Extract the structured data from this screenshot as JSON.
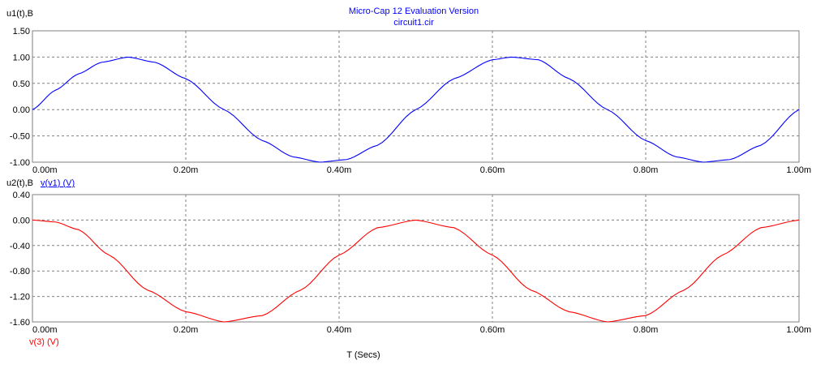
{
  "header": {
    "title": "Micro-Cap 12 Evaluation Version",
    "subtitle": "circuit1.cir"
  },
  "colors": {
    "top_trace": "#0000ff",
    "bottom_trace": "#ff0000",
    "title_text": "#0000ff",
    "grid": "#808080",
    "frame": "#808080",
    "text": "#000000"
  },
  "chart_data": [
    {
      "type": "line",
      "ylabel": "u1(t),B",
      "xlabel": "",
      "xlim": [
        0,
        0.001
      ],
      "ylim": [
        -1.0,
        1.5
      ],
      "x_ticks": [
        0,
        0.0002,
        0.0004,
        0.0006,
        0.0008,
        0.001
      ],
      "x_tick_labels": [
        "0.00m",
        "0.20m",
        "0.40m",
        "0.60m",
        "0.80m",
        "1.00m"
      ],
      "y_ticks": [
        -1.0,
        -0.5,
        0.0,
        0.5,
        1.0,
        1.5
      ],
      "y_tick_labels": [
        "-1.00",
        "-0.50",
        "0.00",
        "0.50",
        "1.00",
        "1.50"
      ],
      "grid": true,
      "series": [
        {
          "color": "#0000ff",
          "x": [
            0,
            3e-05,
            6e-05,
            9e-05,
            0.000125,
            0.00016,
            0.0002,
            0.00025,
            0.0003,
            0.00034,
            0.000375,
            0.00041,
            0.00045,
            0.0005,
            0.00055,
            0.0006,
            0.000625,
            0.00066,
            0.0007,
            0.00075,
            0.0008,
            0.00084,
            0.000875,
            0.00091,
            0.00095,
            0.001
          ],
          "y": [
            0.0,
            0.37,
            0.68,
            0.9,
            1.0,
            0.9,
            0.59,
            0.0,
            -0.59,
            -0.9,
            -1.0,
            -0.95,
            -0.68,
            0.0,
            0.59,
            0.95,
            1.0,
            0.95,
            0.59,
            0.0,
            -0.59,
            -0.9,
            -1.0,
            -0.95,
            -0.68,
            0.0
          ]
        }
      ]
    },
    {
      "type": "line",
      "ylabel": "u2(t),B",
      "legend_top": "v(v1) (V)",
      "xlabel": "T (Secs)",
      "trace_label": "v(3) (V)",
      "xlim": [
        0,
        0.001
      ],
      "ylim": [
        -1.6,
        0.4
      ],
      "x_ticks": [
        0,
        0.0002,
        0.0004,
        0.0006,
        0.0008,
        0.001
      ],
      "x_tick_labels": [
        "0.00m",
        "0.20m",
        "0.40m",
        "0.60m",
        "0.80m",
        "1.00m"
      ],
      "y_ticks": [
        -1.6,
        -1.2,
        -0.8,
        -0.4,
        0.0,
        0.4
      ],
      "y_tick_labels": [
        "-1.60",
        "-1.20",
        "-0.80",
        "-0.40",
        "0.00",
        "0.40"
      ],
      "grid": true,
      "series": [
        {
          "name": "v(3) (V)",
          "color": "#ff0000",
          "x": [
            0,
            3e-05,
            6e-05,
            0.0001,
            0.00015,
            0.0002,
            0.00025,
            0.0003,
            0.00035,
            0.0004,
            0.00045,
            0.0005,
            0.00055,
            0.0006,
            0.00065,
            0.0007,
            0.00075,
            0.0008,
            0.00085,
            0.0009,
            0.00095,
            0.001
          ],
          "y": [
            0.0,
            -0.03,
            -0.15,
            -0.55,
            -1.1,
            -1.44,
            -1.6,
            -1.5,
            -1.1,
            -0.55,
            -0.12,
            0.0,
            -0.12,
            -0.55,
            -1.1,
            -1.44,
            -1.6,
            -1.5,
            -1.1,
            -0.55,
            -0.12,
            0.0
          ]
        }
      ]
    }
  ]
}
